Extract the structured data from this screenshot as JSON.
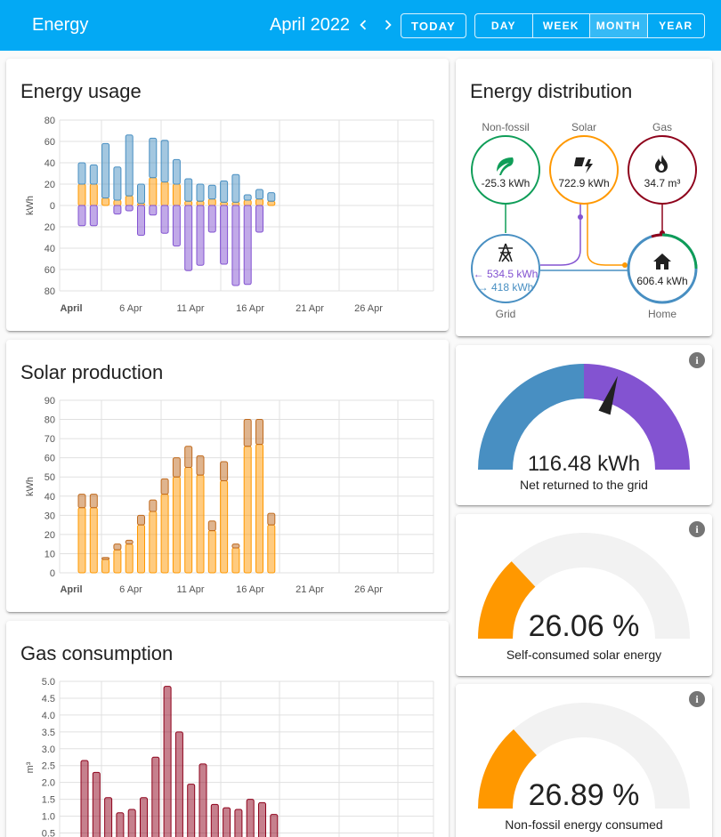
{
  "header": {
    "title": "Energy",
    "period": "April 2022",
    "today": "TODAY",
    "ranges": [
      "DAY",
      "WEEK",
      "MONTH",
      "YEAR"
    ],
    "active_range": "MONTH"
  },
  "colors": {
    "header": "#03a9f4",
    "grid_consumption": "#488fc2",
    "solar": "#ff9800",
    "return": "#8353d1",
    "gas": "#8e021b",
    "non_fossil": "#0f9d58"
  },
  "cards": {
    "usage_title": "Energy usage",
    "solar_title": "Solar production",
    "gas_title": "Gas consumption",
    "distribution_title": "Energy distribution"
  },
  "distribution": {
    "non_fossil": {
      "label": "Non-fossil",
      "value": "-25.3 kWh",
      "icon": "leaf-icon"
    },
    "solar": {
      "label": "Solar",
      "value": "722.9 kWh",
      "icon": "solar-power-icon"
    },
    "gas": {
      "label": "Gas",
      "value": "34.7 m³",
      "icon": "fire-icon"
    },
    "grid": {
      "label": "Grid",
      "from_grid": "534.5 kWh",
      "to_grid": "418 kWh",
      "icon": "transmission-tower-icon"
    },
    "home": {
      "label": "Home",
      "value": "606.4 kWh",
      "icon": "home-icon"
    }
  },
  "gauges": [
    {
      "value": "116.48 kWh",
      "label": "Net returned to the grid",
      "needle_fraction": 0.61
    },
    {
      "value": "26.06 %",
      "label": "Self-consumed solar energy",
      "fraction": 0.2606
    },
    {
      "value": "26.89 %",
      "label": "Non-fossil energy consumed",
      "fraction": 0.2689
    }
  ],
  "chart_data": [
    {
      "type": "bar",
      "title": "Energy usage",
      "ylabel": "kWh",
      "ylim": [
        -80,
        80
      ],
      "y_ticks": [
        "80",
        "60",
        "40",
        "20",
        "0",
        "20",
        "40",
        "60",
        "80"
      ],
      "x_ticks": [
        "April",
        "6 Apr",
        "11 Apr",
        "16 Apr",
        "21 Apr",
        "26 Apr"
      ],
      "days": [
        1,
        2,
        3,
        4,
        5,
        6,
        7,
        8,
        9,
        10,
        11,
        12,
        13,
        14,
        15,
        16,
        17,
        18
      ],
      "series": [
        {
          "name": "solar",
          "values": [
            20,
            20,
            7,
            5,
            9,
            2,
            26,
            22,
            20,
            4,
            4,
            6,
            3,
            3,
            5,
            6,
            4,
            0
          ]
        },
        {
          "name": "grid",
          "values": [
            20,
            18,
            51,
            31,
            57,
            18,
            37,
            39,
            23,
            21,
            16,
            13,
            20,
            26,
            5,
            9,
            8,
            0
          ]
        },
        {
          "name": "return",
          "values": [
            -19,
            -19,
            0,
            -8,
            -5,
            -28,
            -9,
            -26,
            -38,
            -61,
            -56,
            -25,
            -55,
            -75,
            -74,
            -25,
            0,
            0
          ]
        }
      ]
    },
    {
      "type": "bar",
      "title": "Solar production",
      "ylabel": "kWh",
      "ylim": [
        0,
        90
      ],
      "y_ticks": [
        "90",
        "80",
        "70",
        "60",
        "50",
        "40",
        "30",
        "20",
        "10",
        "0"
      ],
      "x_ticks": [
        "April",
        "6 Apr",
        "11 Apr",
        "16 Apr",
        "21 Apr",
        "26 Apr"
      ],
      "days": [
        1,
        2,
        3,
        4,
        5,
        6,
        7,
        8,
        9,
        10,
        11,
        12,
        13,
        14,
        15,
        16,
        17
      ],
      "series": [
        {
          "name": "production",
          "values": [
            34,
            34,
            7,
            12,
            15,
            25,
            32,
            41,
            50,
            55,
            51,
            22,
            48,
            13,
            66,
            67,
            25
          ]
        },
        {
          "name": "forecast",
          "values": [
            7,
            7,
            1,
            3,
            2,
            5,
            6,
            8,
            10,
            11,
            10,
            5,
            10,
            2,
            14,
            13,
            6
          ]
        }
      ]
    },
    {
      "type": "bar",
      "title": "Gas consumption",
      "ylabel": "m³",
      "ylim": [
        0,
        5
      ],
      "y_ticks": [
        "5.0",
        "4.5",
        "4.0",
        "3.5",
        "3.0",
        "2.5",
        "2.0",
        "1.5",
        "1.0",
        "0.5"
      ],
      "days": [
        1,
        2,
        3,
        4,
        5,
        6,
        7,
        8,
        9,
        10,
        11,
        12,
        13,
        14,
        15,
        16,
        17
      ],
      "values": [
        2.65,
        2.3,
        1.55,
        1.1,
        1.2,
        1.55,
        2.75,
        4.85,
        3.5,
        1.95,
        2.55,
        1.35,
        1.25,
        1.2,
        1.5,
        1.4,
        1.05
      ]
    }
  ]
}
